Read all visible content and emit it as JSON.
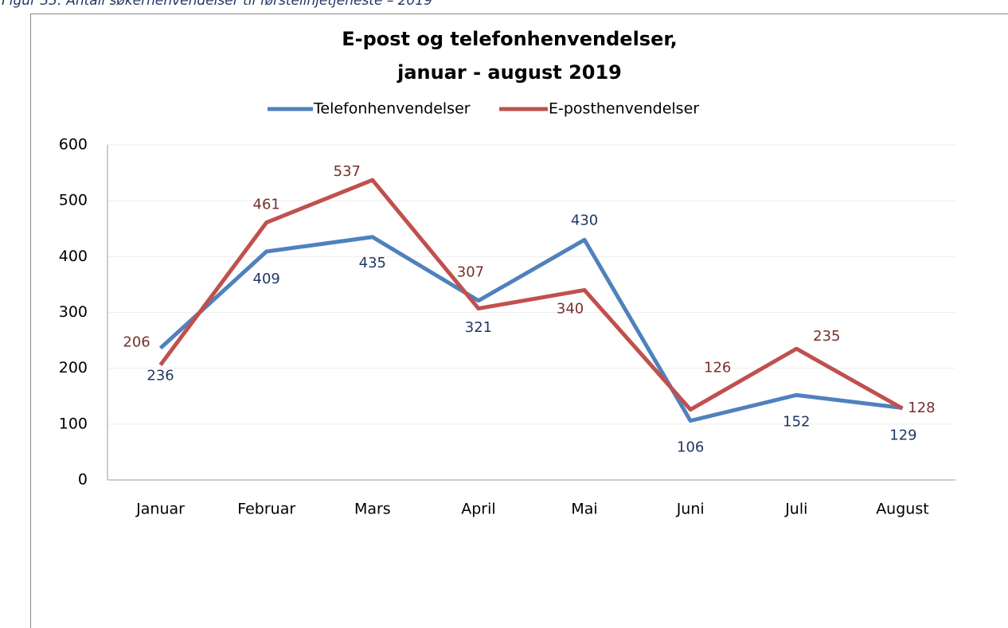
{
  "caption": "Figur 33: Antall søkerhenvendelser til førstelinjetjeneste – 2019",
  "chart_data": {
    "type": "line",
    "title": [
      "E-post og telefonhenvendelser,",
      "januar - august 2019"
    ],
    "categories": [
      "Januar",
      "Februar",
      "Mars",
      "April",
      "Mai",
      "Juni",
      "Juli",
      "August"
    ],
    "series": [
      {
        "name": "Telefonhenvendelser",
        "color": "#4f81bd",
        "label_color": "#1f3864",
        "values": [
          236,
          409,
          435,
          321,
          430,
          106,
          152,
          129
        ]
      },
      {
        "name": "E-posthenvendelser",
        "color": "#c0504d",
        "label_color": "#7a2e2c",
        "values": [
          206,
          461,
          537,
          307,
          340,
          126,
          235,
          128
        ]
      }
    ],
    "ylim": [
      0,
      600
    ],
    "yticks": [
      0,
      100,
      200,
      300,
      400,
      500,
      600
    ],
    "grid": true,
    "legend": "top"
  }
}
